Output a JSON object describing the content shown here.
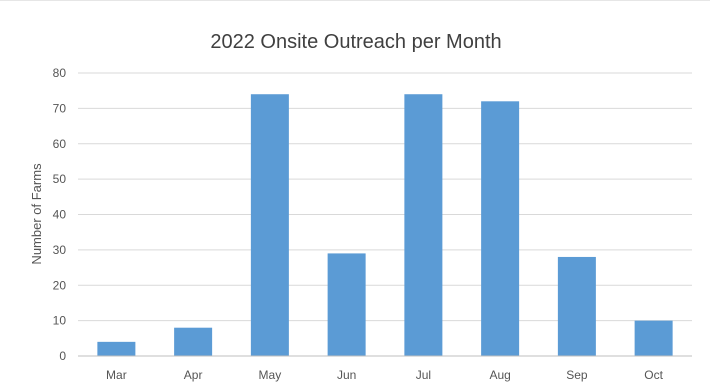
{
  "chart_data": {
    "type": "bar",
    "title": "2022 Onsite Outreach per Month",
    "xlabel": "",
    "ylabel": "Number of Farms",
    "categories": [
      "Mar",
      "Apr",
      "May",
      "Jun",
      "Jul",
      "Aug",
      "Sep",
      "Oct"
    ],
    "values": [
      4,
      8,
      74,
      29,
      74,
      72,
      28,
      10
    ],
    "ylim": [
      0,
      80
    ],
    "yticks": [
      0,
      10,
      20,
      30,
      40,
      50,
      60,
      70,
      80
    ],
    "grid": true,
    "legend": "none",
    "colors": {
      "bar": "#5b9bd5",
      "grid": "#d9d9d9",
      "axis": "#bfbfbf",
      "text": "#595959"
    }
  }
}
